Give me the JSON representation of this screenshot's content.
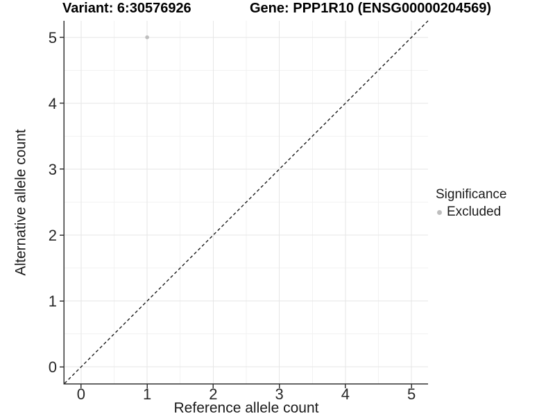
{
  "figure": {
    "title_variant": "Variant: 6:30576926",
    "title_gene": "Gene: PPP1R10 (ENSG00000204569)"
  },
  "legend": {
    "title": "Significance",
    "items": [
      {
        "label": "Excluded",
        "color": "#bebebe"
      }
    ]
  },
  "chart_data": {
    "type": "scatter",
    "title": "Variant: 6:30576926    Gene: PPP1R10 (ENSG00000204569)",
    "xlabel": "Reference allele count",
    "ylabel": "Alternative allele count",
    "xlim": [
      -0.25,
      5.25
    ],
    "ylim": [
      -0.25,
      5.25
    ],
    "x_ticks": [
      0,
      1,
      2,
      3,
      4,
      5
    ],
    "y_ticks": [
      0,
      1,
      2,
      3,
      4,
      5
    ],
    "x_minor_ticks": [
      0.5,
      1.5,
      2.5,
      3.5,
      4.5
    ],
    "y_minor_ticks": [
      0.5,
      1.5,
      2.5,
      3.5,
      4.5
    ],
    "grid": "major+minor",
    "legend_position": "right",
    "series": [
      {
        "name": "Excluded",
        "color": "#bebebe",
        "points": [
          [
            1,
            5
          ]
        ]
      }
    ],
    "reference_line": {
      "slope": 1,
      "intercept": 0,
      "style": "dashed",
      "color": "#1a1a1a"
    },
    "colors": {
      "background": "#ffffff",
      "major_grid": "#e6e6e6",
      "minor_grid": "#f2f2f2",
      "axis_line": "#333333",
      "tick_mark": "#333333",
      "tick_label": "#262626",
      "point": "#bebebe"
    }
  }
}
